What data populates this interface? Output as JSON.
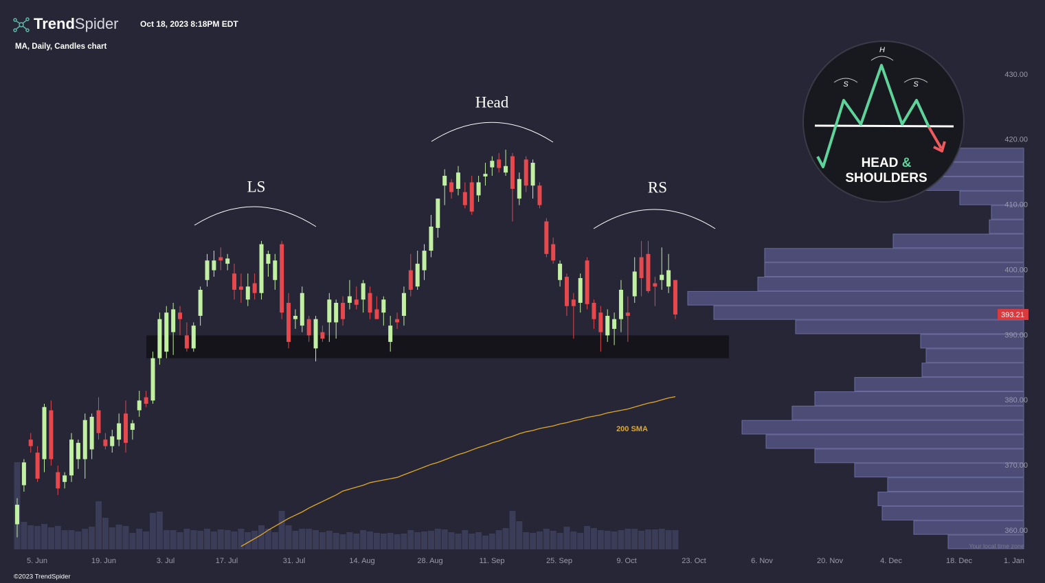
{
  "chart_data": {
    "type": "candlestick",
    "logo": [
      "Trend",
      "Spider"
    ],
    "timestamp": "Oct 18, 2023 8:18PM EDT",
    "subtitle": "MA, Daily, Candles chart",
    "footer": "©2023 TrendSpider",
    "timezone_note": "Your local time zone",
    "annotations": {
      "left_shoulder": "LS",
      "head": "Head",
      "right_shoulder": "RS",
      "sma": "200 SMA"
    },
    "badge": {
      "peak": "H",
      "shoulders": [
        "S",
        "S"
      ],
      "line1": [
        "HEAD",
        "&"
      ],
      "line2": "SHOULDERS"
    },
    "up_color": "#c2f0a2",
    "down_color": "#e5484d",
    "sma_color": "#e2a924",
    "volume_color": "#3b3c57",
    "profile_color": "#4c4c77",
    "ylim": [
      357.15,
      441.49
    ],
    "yticks": [
      {
        "value": 360,
        "label": "360.00"
      },
      {
        "value": 370,
        "label": "370.00"
      },
      {
        "value": 380,
        "label": "380.00"
      },
      {
        "value": 390,
        "label": "390.00"
      },
      {
        "value": 400,
        "label": "400.00"
      },
      {
        "value": 410,
        "label": "410.00"
      },
      {
        "value": 420,
        "label": "420.00"
      },
      {
        "value": 430,
        "label": "430.00"
      }
    ],
    "x_tick_labels": [
      "5. Jun",
      "19. Jun",
      "3. Jul",
      "17. Jul",
      "31. Jul",
      "14. Aug",
      "28. Aug",
      "11. Sep",
      "25. Sep",
      "9. Oct",
      "23. Oct",
      "6. Nov",
      "20. Nov",
      "4. Dec",
      "18. Dec",
      "1. Jan"
    ],
    "open": [
      361,
      367,
      374,
      372,
      371,
      378.5,
      369,
      367.5,
      368.5,
      371,
      371,
      372.5,
      378.5,
      374,
      373,
      374,
      378,
      375.5,
      378.5,
      380.5,
      380,
      386.5,
      387.5,
      390.5,
      393.5,
      390,
      388,
      393,
      398.5,
      400,
      402,
      401,
      399.5,
      397.5,
      395.5,
      398,
      396.5,
      401,
      398.5,
      404,
      395,
      392.5,
      391.5,
      392.5,
      388,
      390.5,
      392,
      392,
      395,
      395,
      395.5,
      395.5,
      396.5,
      394,
      393.5,
      389,
      392.5,
      393,
      400,
      397.5,
      400,
      403,
      406.5,
      413,
      413.5,
      412.5,
      412,
      413.5,
      411.5,
      414.4,
      415.8,
      417,
      415,
      417.5,
      411,
      417,
      413,
      413,
      407.5,
      404,
      398.5,
      399,
      395.5,
      395,
      401.5,
      395,
      393.5,
      390,
      391,
      392.5,
      393.5,
      396,
      402,
      402.5,
      398,
      398.5,
      397.5,
      398.5
    ],
    "high": [
      365,
      371,
      375,
      373,
      379.5,
      380,
      370,
      369,
      375,
      374,
      378,
      378,
      380.5,
      375,
      375.5,
      378,
      380,
      377,
      381.5,
      381.5,
      387.5,
      393.5,
      394.5,
      395,
      394.5,
      392,
      392,
      397.5,
      402.5,
      403,
      403.5,
      402.5,
      401,
      399.5,
      399.5,
      399.5,
      404.5,
      403,
      402.5,
      404.5,
      396.5,
      394,
      397.5,
      393,
      393,
      391.5,
      396.5,
      395.5,
      396,
      398.5,
      397.5,
      398.5,
      397.5,
      396,
      396,
      393,
      393.5,
      397.5,
      402.5,
      403,
      404,
      408.5,
      411,
      415.5,
      414,
      416,
      413.5,
      414.5,
      414.5,
      416.5,
      417.5,
      418,
      418.5,
      418,
      415,
      417.5,
      417,
      413.5,
      408,
      405,
      401.5,
      399.5,
      396.5,
      399.5,
      402,
      395.5,
      394.5,
      394,
      393.5,
      398.5,
      396,
      402,
      404.5,
      404.5,
      399,
      403.5,
      402.5,
      398.5
    ],
    "low": [
      359,
      366,
      372,
      367.5,
      369,
      370,
      365.5,
      366.5,
      367.5,
      369.5,
      368,
      371,
      374,
      372.5,
      372,
      373,
      372,
      374,
      377.5,
      379,
      379.5,
      385.5,
      386.5,
      387,
      390,
      387.5,
      387.5,
      391.5,
      397.5,
      399,
      400,
      400,
      395.5,
      395,
      394.5,
      395.5,
      395.5,
      399,
      397,
      392.5,
      388,
      391,
      390.5,
      389,
      386,
      389,
      389,
      389.5,
      391.5,
      394,
      394,
      393.5,
      392.5,
      392.5,
      391.5,
      387.5,
      391,
      391.5,
      396,
      397,
      398.5,
      402,
      405,
      410,
      411,
      411.5,
      409.5,
      408.5,
      410.5,
      413,
      414.5,
      415,
      414.5,
      407.5,
      410,
      412,
      411,
      409.5,
      402,
      401,
      397.5,
      393,
      389.5,
      393.5,
      394,
      391,
      387.5,
      389,
      388.5,
      390.5,
      389,
      395,
      396,
      396.5,
      394.5,
      397,
      396.5,
      392.5
    ],
    "close": [
      364,
      370.5,
      373,
      368,
      379,
      371,
      366.5,
      368.5,
      374,
      373.5,
      377,
      377.5,
      375,
      373,
      374.5,
      376.5,
      373.5,
      376.5,
      380,
      379.5,
      386.5,
      392.5,
      393.5,
      394,
      392.5,
      388,
      391.5,
      397,
      401.5,
      401.5,
      401.5,
      401.8,
      397,
      397,
      397.5,
      396.5,
      404,
      402.5,
      401.5,
      393.5,
      389,
      393,
      396.5,
      390,
      392.5,
      389.5,
      395.5,
      395,
      392.5,
      396,
      394.7,
      398,
      393.5,
      392.5,
      395.5,
      391.5,
      392,
      396.5,
      397,
      401,
      403,
      406.7,
      411,
      414.5,
      412,
      415,
      410,
      409,
      413.5,
      414.8,
      416.8,
      415.7,
      416,
      412.5,
      414,
      413,
      416.5,
      410,
      402.5,
      401.5,
      401,
      394.5,
      394.5,
      398.8,
      394.8,
      392.5,
      390.5,
      393,
      392.5,
      397,
      393,
      399.8,
      398.8,
      396.8,
      397.5,
      399.3,
      400,
      393.21
    ],
    "volume": [
      12.7,
      4.0,
      3.5,
      3.4,
      3.7,
      3.2,
      3.4,
      2.8,
      2.8,
      2.6,
      3.0,
      3.3,
      7.0,
      4.6,
      3.2,
      3.6,
      3.4,
      2.4,
      3.0,
      2.6,
      5.3,
      5.5,
      2.8,
      2.8,
      2.5,
      3.0,
      2.8,
      2.7,
      3.0,
      2.6,
      2.9,
      2.8,
      2.6,
      3.0,
      2.5,
      2.7,
      3.5,
      3.0,
      2.5,
      5.6,
      3.5,
      2.7,
      3.0,
      3.0,
      2.8,
      2.5,
      2.7,
      2.4,
      2.2,
      2.5,
      2.3,
      2.8,
      2.6,
      2.4,
      2.3,
      2.4,
      2.2,
      2.3,
      2.8,
      2.5,
      2.6,
      2.7,
      3.0,
      2.9,
      2.5,
      2.3,
      2.8,
      2.3,
      2.5,
      2.0,
      2.3,
      2.8,
      3.1,
      5.6,
      4.1,
      2.5,
      2.4,
      2.6,
      3.0,
      2.7,
      2.4,
      3.3,
      2.6,
      2.4,
      3.4,
      3.1,
      2.8,
      2.7,
      2.6,
      2.8,
      3.0,
      3.0,
      2.7,
      2.9,
      2.9,
      3.0,
      2.8,
      2.8
    ],
    "sma": [
      null,
      null,
      null,
      null,
      null,
      null,
      null,
      null,
      null,
      null,
      null,
      null,
      null,
      null,
      null,
      null,
      null,
      null,
      null,
      null,
      null,
      null,
      null,
      null,
      null,
      null,
      null,
      null,
      null,
      null,
      null,
      null,
      null,
      357.6,
      358.2,
      358.8,
      359.4,
      360.1,
      360.7,
      361.3,
      361.9,
      362.4,
      362.9,
      363.5,
      364.0,
      364.5,
      365.0,
      365.5,
      366.1,
      366.4,
      366.7,
      367.0,
      367.4,
      367.6,
      367.8,
      368.0,
      368.2,
      368.6,
      369.0,
      369.4,
      369.8,
      370.2,
      370.5,
      370.9,
      371.3,
      371.7,
      372.0,
      372.4,
      372.8,
      373.1,
      373.5,
      373.8,
      374.2,
      374.5,
      374.9,
      375.2,
      375.4,
      375.7,
      375.9,
      376.1,
      376.4,
      376.6,
      376.9,
      377.1,
      377.4,
      377.6,
      377.8,
      378.1,
      378.3,
      378.5,
      378.7,
      379.0,
      379.3,
      379.6,
      379.8,
      380.1,
      380.4,
      380.6
    ],
    "support_zone": {
      "low": 386.5,
      "high": 390
    },
    "volume_profile": {
      "bins": [
        357.2,
        359.4,
        361.6,
        363.8,
        366,
        368.2,
        370.4,
        372.6,
        374.8,
        377,
        379.2,
        381.4,
        383.6,
        385.8,
        388,
        390.2,
        392.4,
        394.6,
        396.8,
        399,
        401.2,
        403.4,
        405.6,
        407.8,
        410,
        412.2,
        414.4,
        416.6,
        418.8
      ],
      "values": [
        110,
        160,
        206,
        212,
        198,
        246,
        304,
        375,
        410,
        337,
        304,
        246,
        148,
        142,
        150,
        332,
        451,
        489,
        387,
        377,
        377,
        190,
        50,
        47,
        93,
        142,
        142,
        155
      ]
    }
  }
}
